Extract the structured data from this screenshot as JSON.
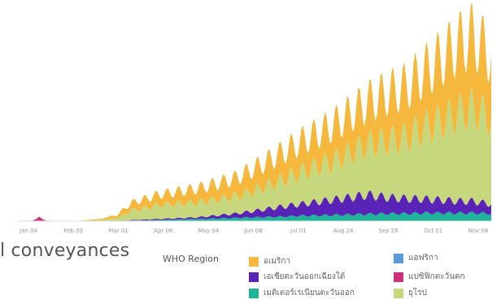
{
  "chart_data": {
    "type": "area",
    "stacked": true,
    "title": "l conveyances",
    "x_ticks": [
      "Jan 04",
      "Feb 03",
      "Mar 01",
      "Apr 06",
      "May 04",
      "Jun 08",
      "Jul 01",
      "Aug 24",
      "Sep 28",
      "Oct 01",
      "Nov 08"
    ],
    "legend": {
      "title": "WHO Region",
      "placement": "bottom-right",
      "items": [
        {
          "label": "อเมริกา",
          "color": "#F5B83D",
          "swatch": "legend-swatch-americas"
        },
        {
          "label": "แอฟริกา",
          "color": "#5B9BD5",
          "swatch": "legend-swatch-africa"
        },
        {
          "label": "เอเชียตะวันออกเฉียงใต้",
          "color": "#5A23B8",
          "swatch": "legend-swatch-south-east-asia"
        },
        {
          "label": "แปซิฟิกตะวันตก",
          "color": "#D12E7A",
          "swatch": "legend-swatch-western-pacific"
        },
        {
          "label": "เมดิเตอร์เรเนียนตะวันออก",
          "color": "#1FB399",
          "swatch": "legend-swatch-eastern-mediterranean"
        },
        {
          "label": "ยุโรป",
          "color": "#C7D77E",
          "swatch": "legend-swatch-europe"
        }
      ]
    },
    "series_order": [
      "Eastern Mediterranean",
      "South-East Asia",
      "Europe",
      "Americas"
    ],
    "anchors": {
      "x": [
        0,
        0.05,
        0.12,
        0.18,
        0.21,
        0.24,
        0.3,
        0.38,
        0.46,
        0.5,
        0.55,
        0.6,
        0.66,
        0.7,
        0.74,
        0.78,
        0.82,
        0.86,
        0.9,
        0.93,
        0.96,
        1.0
      ],
      "Eastern Mediterranean": [
        0,
        0,
        0,
        0,
        0,
        1,
        2,
        4,
        6,
        7,
        8,
        10,
        11,
        12,
        13,
        14,
        14,
        15,
        15,
        15,
        15,
        14
      ],
      "South-East Asia": [
        0,
        0,
        0,
        0,
        0,
        1,
        2,
        3,
        8,
        12,
        18,
        22,
        28,
        32,
        36,
        30,
        28,
        26,
        24,
        22,
        22,
        18
      ],
      "Europe": [
        0,
        1,
        0,
        2,
        6,
        18,
        26,
        28,
        32,
        38,
        48,
        60,
        72,
        82,
        95,
        105,
        115,
        135,
        150,
        165,
        175,
        160
      ],
      "Americas": [
        0,
        0,
        0,
        2,
        6,
        14,
        20,
        26,
        34,
        42,
        50,
        58,
        66,
        74,
        80,
        90,
        95,
        105,
        120,
        130,
        135,
        120
      ]
    },
    "colors": {
      "Eastern Mediterranean": "#1FB399",
      "South-East Asia": "#5A23B8",
      "Europe": "#C7D77E",
      "Americas": "#F5B83D",
      "Western Pacific": "#D12E7A"
    },
    "ylim": [
      0,
      340
    ],
    "grid": false,
    "weekly_oscillation": true
  }
}
